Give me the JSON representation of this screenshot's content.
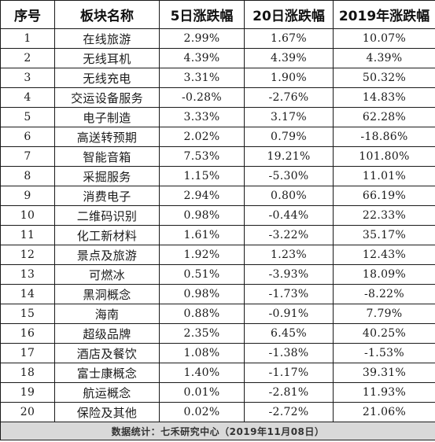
{
  "headers": [
    "序号",
    "板块名称",
    "5日涨跌幅",
    "20日涨跌幅",
    "2019年涨跌幅"
  ],
  "rows": [
    {
      "no": "1",
      "name": "在线旅游",
      "d5": "2.99%",
      "d20": "1.67%",
      "y2019": "10.07%"
    },
    {
      "no": "2",
      "name": "无线耳机",
      "d5": "4.39%",
      "d20": "4.39%",
      "y2019": "4.39%"
    },
    {
      "no": "3",
      "name": "无线充电",
      "d5": "3.31%",
      "d20": "1.90%",
      "y2019": "50.32%"
    },
    {
      "no": "4",
      "name": "交运设备服务",
      "d5": "-0.28%",
      "d20": "-2.76%",
      "y2019": "14.83%"
    },
    {
      "no": "5",
      "name": "电子制造",
      "d5": "3.33%",
      "d20": "3.17%",
      "y2019": "62.28%"
    },
    {
      "no": "6",
      "name": "高送转预期",
      "d5": "2.02%",
      "d20": "0.79%",
      "y2019": "-18.86%"
    },
    {
      "no": "7",
      "name": "智能音箱",
      "d5": "7.53%",
      "d20": "19.21%",
      "y2019": "101.80%"
    },
    {
      "no": "8",
      "name": "采掘服务",
      "d5": "1.15%",
      "d20": "-5.30%",
      "y2019": "11.01%"
    },
    {
      "no": "9",
      "name": "消费电子",
      "d5": "2.94%",
      "d20": "0.80%",
      "y2019": "66.19%"
    },
    {
      "no": "10",
      "name": "二维码识别",
      "d5": "0.98%",
      "d20": "-0.44%",
      "y2019": "22.33%"
    },
    {
      "no": "11",
      "name": "化工新材料",
      "d5": "1.61%",
      "d20": "-3.22%",
      "y2019": "35.17%"
    },
    {
      "no": "12",
      "name": "景点及旅游",
      "d5": "1.92%",
      "d20": "1.23%",
      "y2019": "12.43%"
    },
    {
      "no": "13",
      "name": "可燃冰",
      "d5": "0.51%",
      "d20": "-3.93%",
      "y2019": "18.09%"
    },
    {
      "no": "14",
      "name": "黑洞概念",
      "d5": "0.98%",
      "d20": "-1.73%",
      "y2019": "-8.22%"
    },
    {
      "no": "15",
      "name": "海南",
      "d5": "0.88%",
      "d20": "-0.91%",
      "y2019": "7.79%"
    },
    {
      "no": "16",
      "name": "超级品牌",
      "d5": "2.35%",
      "d20": "6.45%",
      "y2019": "40.25%"
    },
    {
      "no": "17",
      "name": "酒店及餐饮",
      "d5": "1.08%",
      "d20": "-1.38%",
      "y2019": "-1.53%"
    },
    {
      "no": "18",
      "name": "富士康概念",
      "d5": "1.40%",
      "d20": "-1.17%",
      "y2019": "39.31%"
    },
    {
      "no": "19",
      "name": "航运概念",
      "d5": "0.01%",
      "d20": "-2.81%",
      "y2019": "11.93%"
    },
    {
      "no": "20",
      "name": "保险及其他",
      "d5": "0.02%",
      "d20": "-2.72%",
      "y2019": "21.06%"
    }
  ],
  "footer": "数据统计：七禾研究中心（2019年11月08日）"
}
